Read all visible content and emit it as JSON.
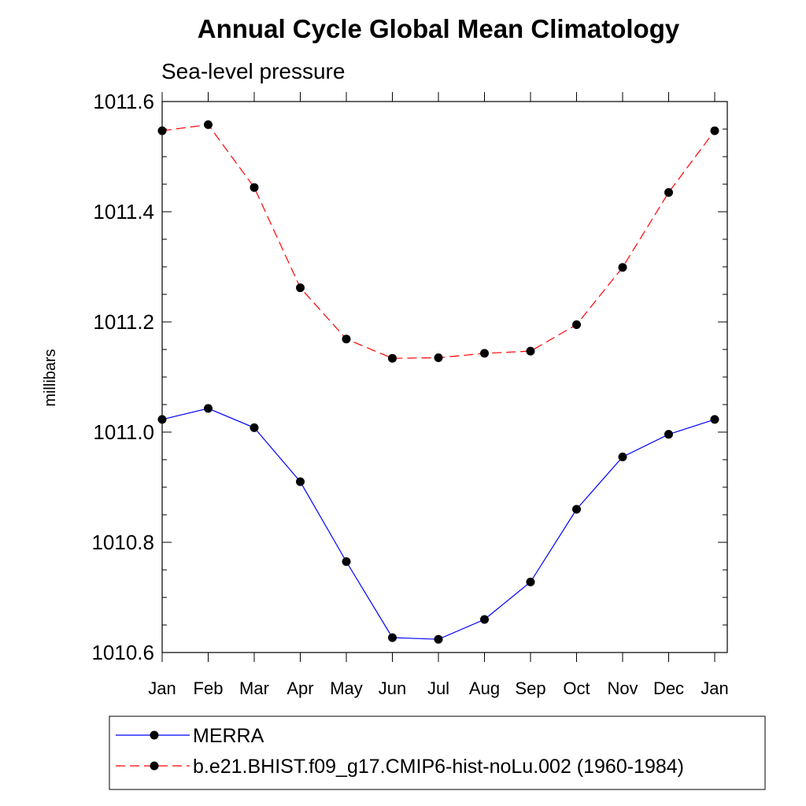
{
  "chart_data": {
    "type": "line",
    "title": "Annual Cycle Global Mean Climatology",
    "subtitle": "Sea-level pressure",
    "ylabel": "millibars",
    "xlabel": "",
    "categories": [
      "Jan",
      "Feb",
      "Mar",
      "Apr",
      "May",
      "Jun",
      "Jul",
      "Aug",
      "Sep",
      "Oct",
      "Nov",
      "Dec",
      "Jan"
    ],
    "ylim": [
      1010.6,
      1011.62
    ],
    "yticks": [
      1010.6,
      1010.8,
      1011.0,
      1011.2,
      1011.4,
      1011.6
    ],
    "ytick_labels": [
      "1010.6",
      "1010.8",
      "1011.0",
      "1011.2",
      "1011.4",
      "1011.6"
    ],
    "grid": false,
    "legend_position": "bottom",
    "series": [
      {
        "name": "MERRA",
        "color": "#0000ff",
        "line_style": "solid",
        "marker": "filled-circle",
        "values": [
          1011.023,
          1011.043,
          1011.008,
          1010.91,
          1010.765,
          1010.627,
          1010.624,
          1010.66,
          1010.728,
          1010.86,
          1010.955,
          1010.996,
          1011.023
        ]
      },
      {
        "name": "b.e21.BHIST.f09_g17.CMIP6-hist-noLu.002 (1960-1984)",
        "color": "#ff0000",
        "line_style": "dashed",
        "marker": "filled-circle",
        "values": [
          1011.547,
          1011.558,
          1011.444,
          1011.262,
          1011.169,
          1011.134,
          1011.135,
          1011.143,
          1011.147,
          1011.195,
          1011.299,
          1011.435,
          1011.547
        ]
      }
    ]
  }
}
